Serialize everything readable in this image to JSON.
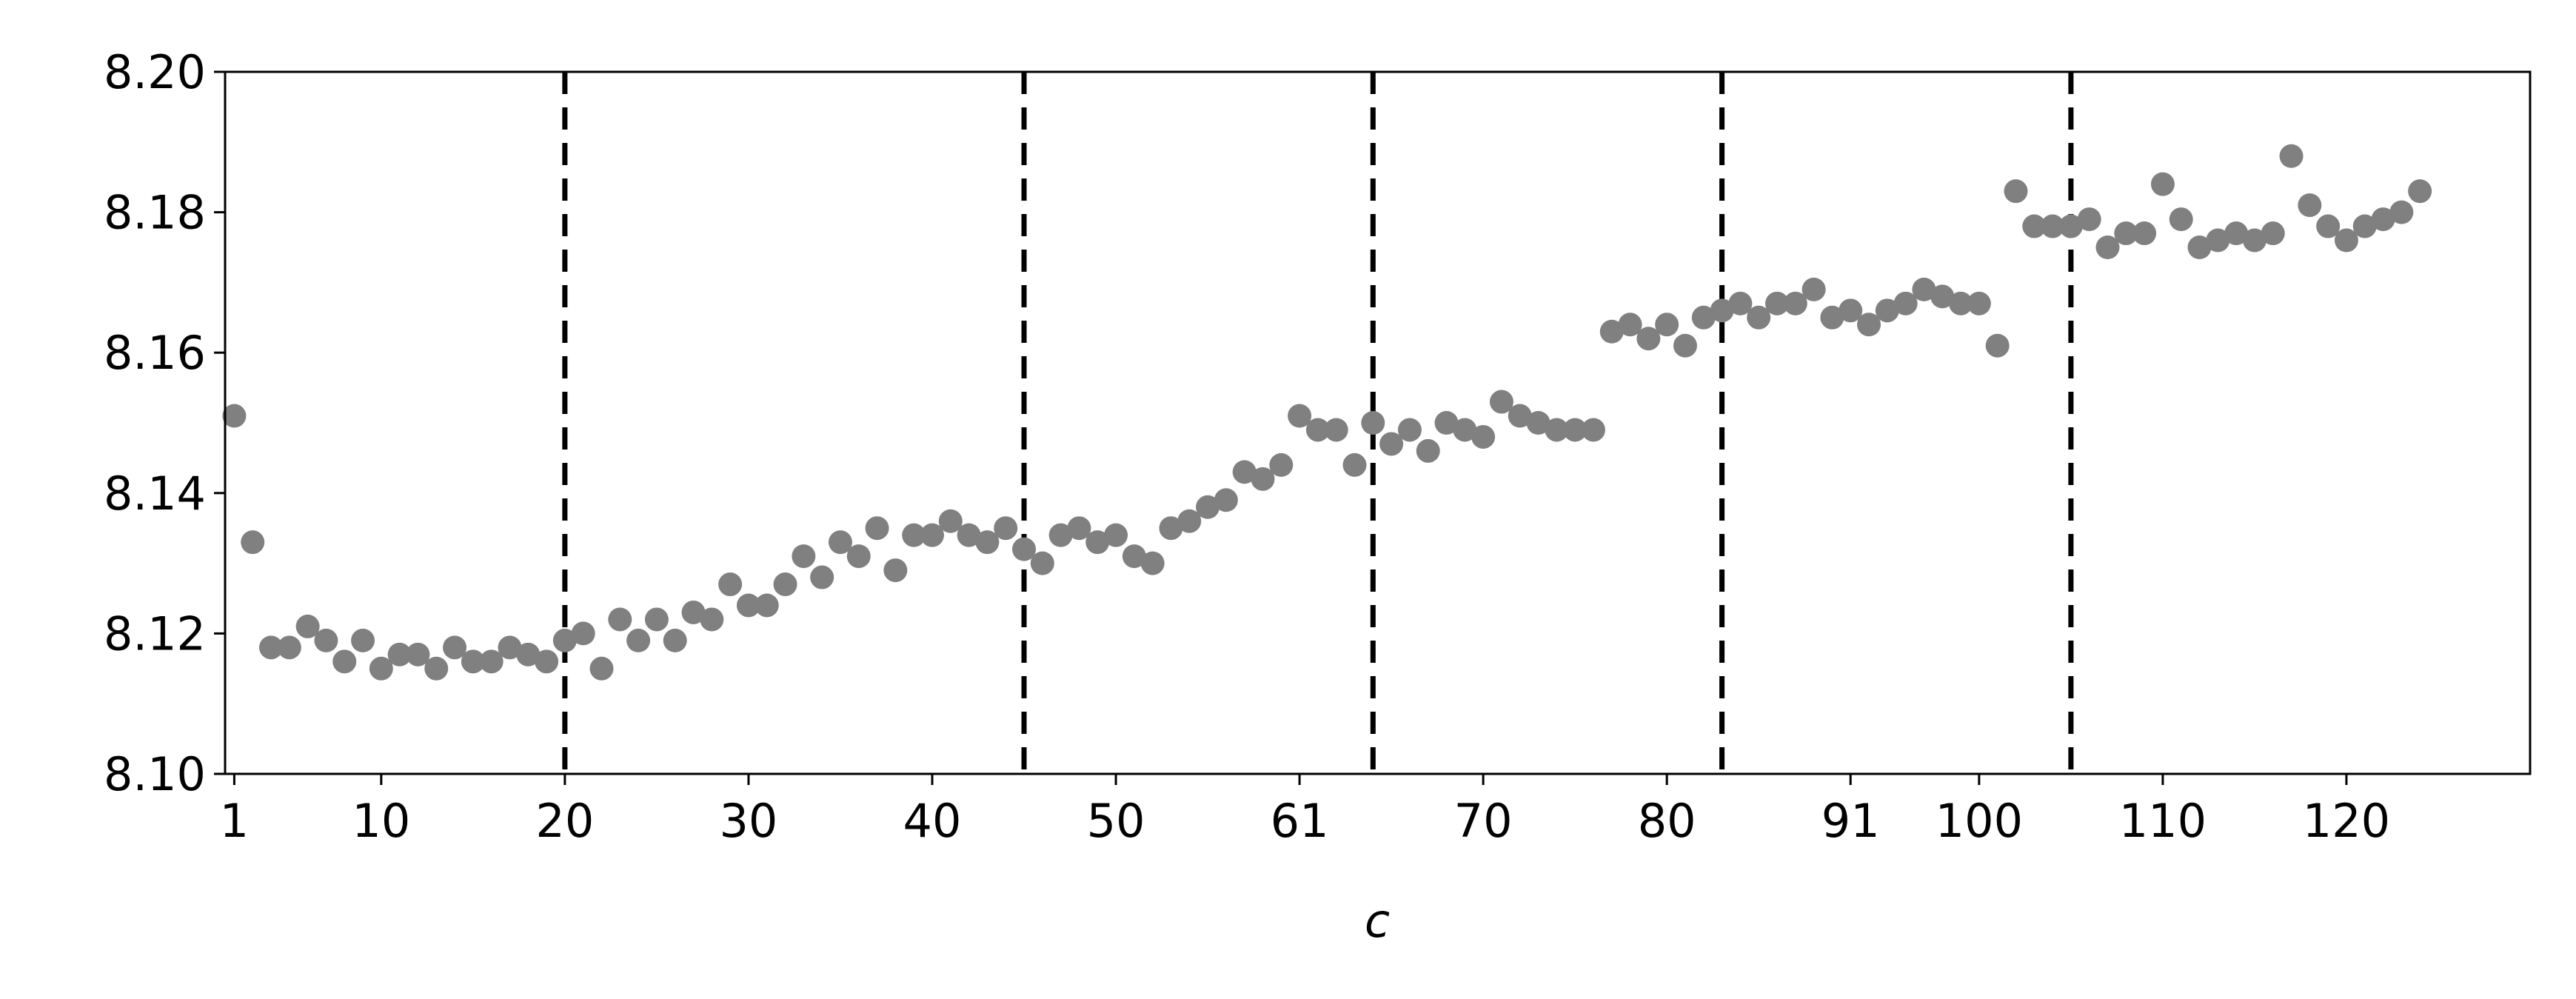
{
  "chart_data": {
    "type": "scatter",
    "x_label": "c",
    "x": [
      1,
      2,
      3,
      4,
      5,
      6,
      7,
      8,
      9,
      10,
      11,
      12,
      13,
      14,
      15,
      16,
      17,
      18,
      19,
      20,
      21,
      22,
      23,
      24,
      25,
      26,
      27,
      28,
      29,
      30,
      31,
      32,
      33,
      34,
      35,
      36,
      37,
      38,
      39,
      40,
      41,
      42,
      43,
      44,
      45,
      46,
      47,
      48,
      49,
      50,
      51,
      52,
      53,
      54,
      55,
      56,
      57,
      58,
      59,
      60,
      61,
      62,
      63,
      64,
      65,
      66,
      67,
      68,
      69,
      70,
      71,
      72,
      73,
      74,
      75,
      76,
      77,
      78,
      79,
      80,
      81,
      82,
      83,
      84,
      85,
      86,
      87,
      88,
      89,
      90,
      91,
      92,
      93,
      94,
      95,
      96,
      97,
      98,
      99,
      100,
      101,
      102,
      103,
      104,
      105,
      106,
      107,
      108,
      109,
      110,
      111,
      112,
      113,
      114,
      115,
      116,
      117,
      118,
      119,
      120
    ],
    "values": [
      8.151,
      8.133,
      8.118,
      8.118,
      8.121,
      8.119,
      8.116,
      8.119,
      8.115,
      8.117,
      8.117,
      8.115,
      8.118,
      8.116,
      8.116,
      8.118,
      8.117,
      8.116,
      8.119,
      8.12,
      8.115,
      8.122,
      8.119,
      8.122,
      8.119,
      8.123,
      8.122,
      8.127,
      8.124,
      8.124,
      8.127,
      8.131,
      8.128,
      8.133,
      8.131,
      8.135,
      8.129,
      8.134,
      8.134,
      8.136,
      8.134,
      8.133,
      8.135,
      8.132,
      8.13,
      8.134,
      8.135,
      8.133,
      8.134,
      8.131,
      8.13,
      8.135,
      8.136,
      8.138,
      8.139,
      8.143,
      8.142,
      8.144,
      8.151,
      8.149,
      8.149,
      8.144,
      8.15,
      8.147,
      8.149,
      8.146,
      8.15,
      8.149,
      8.148,
      8.153,
      8.151,
      8.15,
      8.149,
      8.149,
      8.149,
      8.163,
      8.164,
      8.162,
      8.164,
      8.161,
      8.165,
      8.166,
      8.167,
      8.165,
      8.167,
      8.167,
      8.169,
      8.165,
      8.166,
      8.164,
      8.166,
      8.167,
      8.169,
      8.168,
      8.167,
      8.167,
      8.161,
      8.183,
      8.178,
      8.178,
      8.178,
      8.179,
      8.175,
      8.177,
      8.177,
      8.184,
      8.179,
      8.175,
      8.176,
      8.177,
      8.176,
      8.177,
      8.188,
      8.181,
      8.178,
      8.176,
      8.178,
      8.179,
      8.18,
      8.183
    ],
    "color": "#808080",
    "vlines": [
      19,
      44,
      63,
      82,
      101
    ],
    "vline_color": "#000000",
    "xlim": [
      0.5,
      126
    ],
    "xticks": [
      {
        "value": 1,
        "label": "1"
      },
      {
        "value": 9,
        "label": "10"
      },
      {
        "value": 19,
        "label": "20"
      },
      {
        "value": 29,
        "label": "30"
      },
      {
        "value": 39,
        "label": "40"
      },
      {
        "value": 49,
        "label": "50"
      },
      {
        "value": 59,
        "label": "61"
      },
      {
        "value": 69,
        "label": "70"
      },
      {
        "value": 79,
        "label": "80"
      },
      {
        "value": 89,
        "label": "91"
      },
      {
        "value": 96,
        "label": "100"
      },
      {
        "value": 106,
        "label": "110"
      },
      {
        "value": 116,
        "label": "120"
      }
    ],
    "ylim": [
      8.1,
      8.2
    ],
    "yticks": [
      {
        "value": 8.1,
        "label": "8.10"
      },
      {
        "value": 8.12,
        "label": "8.12"
      },
      {
        "value": 8.14,
        "label": "8.14"
      },
      {
        "value": 8.16,
        "label": "8.16"
      },
      {
        "value": 8.18,
        "label": "8.18"
      },
      {
        "value": 8.2,
        "label": "8.20"
      }
    ],
    "grid": false
  }
}
